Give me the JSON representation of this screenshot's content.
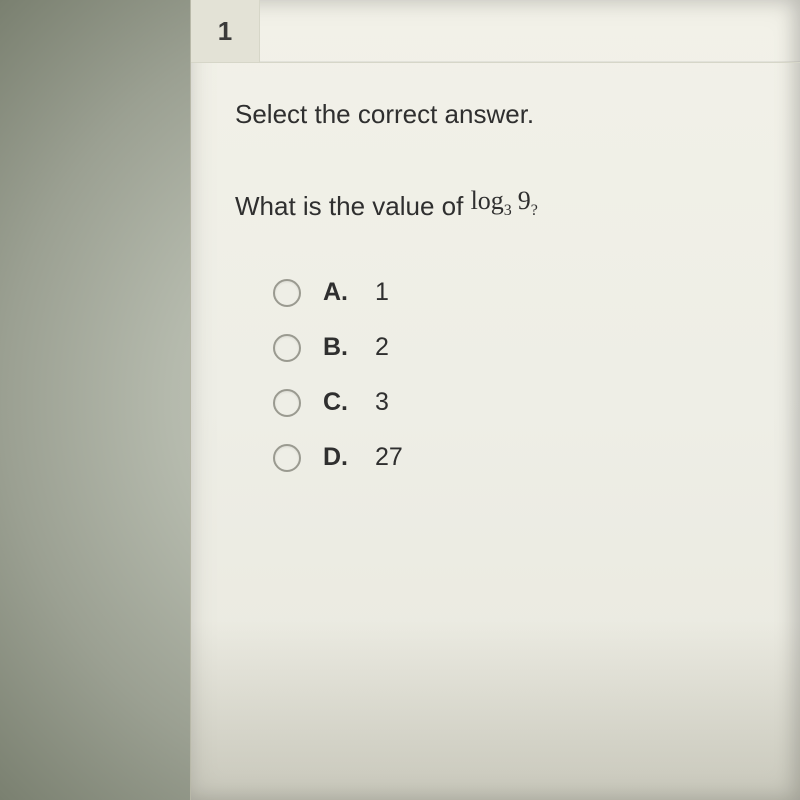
{
  "question_number": "1",
  "instruction": "Select the correct answer.",
  "stem_prefix": "What is the value of ",
  "log": {
    "word": "log",
    "base": "3",
    "argument": "9",
    "trailing": "?"
  },
  "choices": [
    {
      "label": "A.",
      "value": "1"
    },
    {
      "label": "B.",
      "value": "2"
    },
    {
      "label": "C.",
      "value": "3"
    },
    {
      "label": "D.",
      "value": "27"
    }
  ],
  "colors": {
    "card_bg": "#eeeee6",
    "qnum_bg": "#e3e2d6",
    "text": "#2f2f2f",
    "radio_border": "#9a9a90"
  }
}
